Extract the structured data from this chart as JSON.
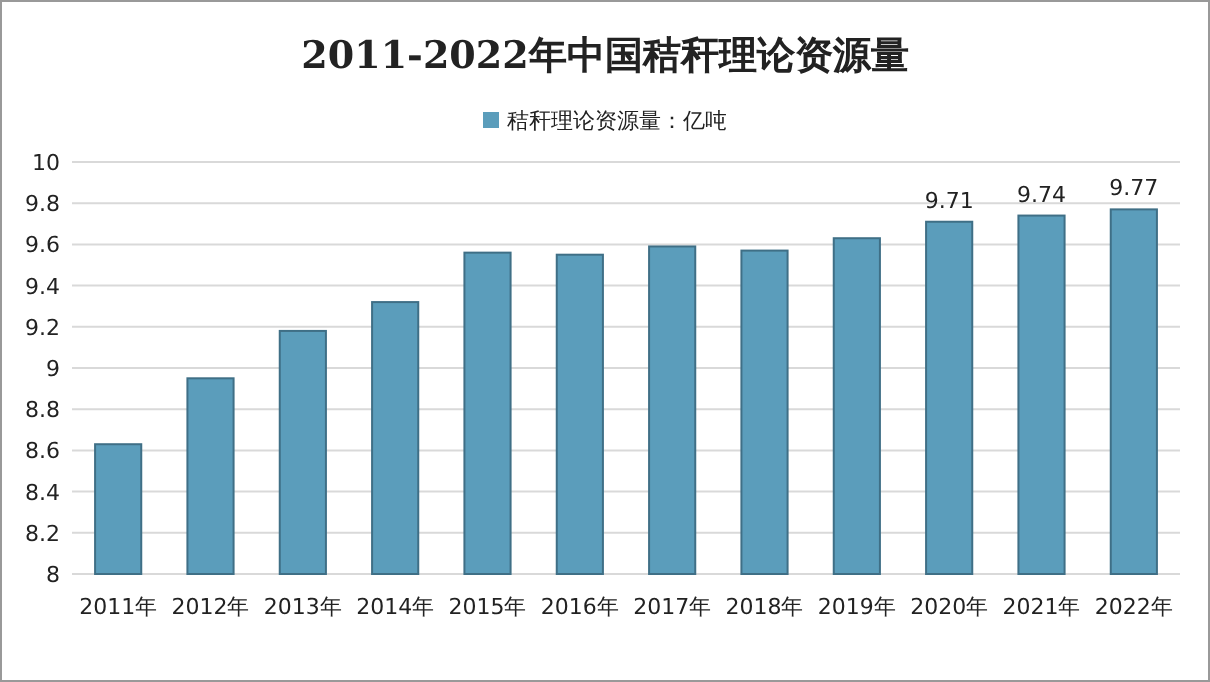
{
  "chart_data": {
    "type": "bar",
    "title": "2011-2022年中国秸秆理论资源量",
    "categories": [
      "2011年",
      "2012年",
      "2013年",
      "2014年",
      "2015年",
      "2016年",
      "2017年",
      "2018年",
      "2019年",
      "2020年",
      "2021年",
      "2022年"
    ],
    "series": [
      {
        "name": "秸秆理论资源量：亿吨",
        "color": "#5b9dbb",
        "values": [
          8.63,
          8.95,
          9.18,
          9.32,
          9.56,
          9.55,
          9.59,
          9.57,
          9.63,
          9.71,
          9.74,
          9.77
        ],
        "value_labels": [
          null,
          null,
          null,
          null,
          null,
          null,
          null,
          null,
          null,
          "9.71",
          "9.74",
          "9.77"
        ]
      }
    ],
    "ylim": [
      8,
      10
    ],
    "yticks": [
      8,
      {
        "value": 8.2,
        "label": "8.2"
      },
      {
        "value": 8.4,
        "label": "8.4"
      },
      {
        "value": 8.6,
        "label": "8.6"
      },
      {
        "value": 8.8,
        "label": "8.8"
      },
      9,
      {
        "value": 9.2,
        "label": "9.2"
      },
      {
        "value": 9.4,
        "label": "9.4"
      },
      {
        "value": 9.6,
        "label": "9.6"
      },
      {
        "value": 9.8,
        "label": "9.8"
      },
      10
    ],
    "grid": "y",
    "legend": "top"
  }
}
